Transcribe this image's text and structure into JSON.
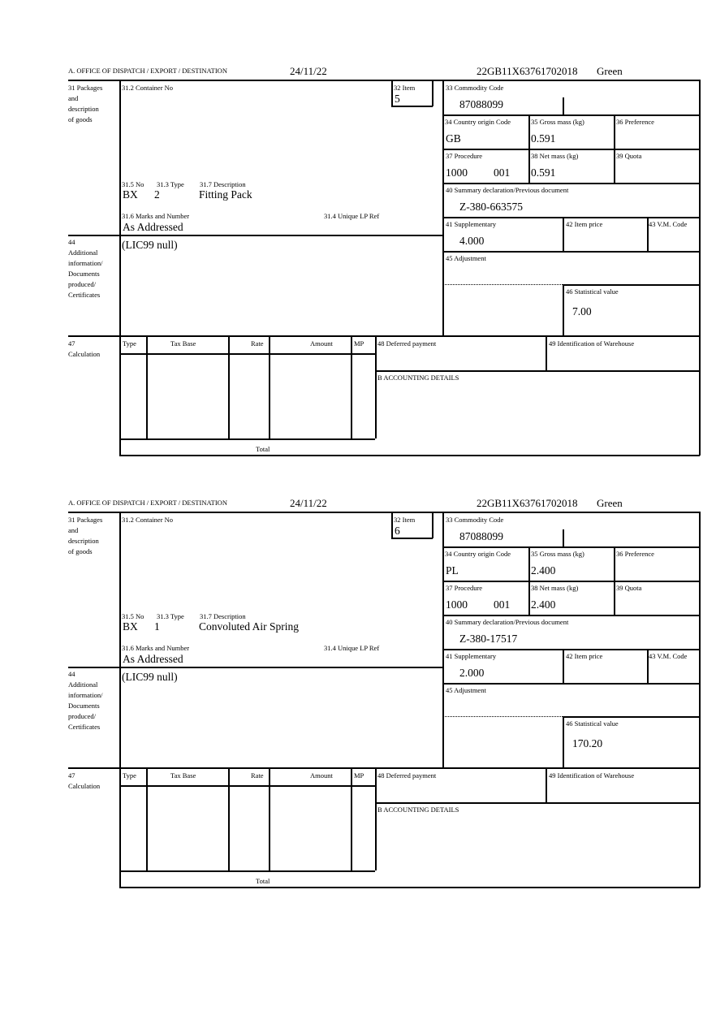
{
  "labels": {
    "office": "A. OFFICE OF DISPATCH / EXPORT / DESTINATION",
    "packages": [
      "31 Packages",
      "and",
      "description",
      "of goods"
    ],
    "container": "31.2 Container No",
    "item": "32 Item",
    "commodity": "33 Commodity Code",
    "country": "34 Country origin Code",
    "gross": "35 Gross mass (kg)",
    "preference": "36 Preference",
    "procedure": "37 Procedure",
    "net": "38 Net mass (kg)",
    "quota": "39 Quota",
    "summary": "40 Summary declaration/Previous document",
    "supplementary": "41 Supplementary",
    "item_price": "42 Item price",
    "vm_code": "43 V.M. Code",
    "adjustment": "45 Adjustment",
    "statistical": "46 Statistical value",
    "no": "31.5 No",
    "type": "31.3 Type",
    "description": "31.7 Description",
    "marks": "31.6 Marks and Number",
    "unique_ref": "31.4 Unique LP Ref",
    "additional": [
      "44",
      "Additional",
      "information/",
      "Documents",
      "produced/",
      "Certificates"
    ],
    "calculation": [
      "47",
      "Calculation"
    ],
    "calc_cols": [
      "Type",
      "Tax Base",
      "Rate",
      "Amount",
      "MP"
    ],
    "deferred": "48 Deferred payment",
    "warehouse": "49 Identification of Warehouse",
    "accounting": "B ACCOUNTING DETAILS",
    "total": "Total"
  },
  "forms": [
    {
      "date": "24/11/22",
      "reference": "22GB11X63761702018",
      "route": "Green",
      "item": "5",
      "commodity_code": "87088099",
      "country": "GB",
      "gross_mass": "0.591",
      "procedure": "1000",
      "procedure_ext": "001",
      "net_mass": "0.591",
      "summary_doc": "Z-380-663575",
      "supplementary": "4.000",
      "statistical_value": "7.00",
      "package_kind": "BX",
      "package_count": "2",
      "description": "Fitting Pack",
      "marks": "As Addressed",
      "additional_info": "(LIC99 null)"
    },
    {
      "date": "24/11/22",
      "reference": "22GB11X63761702018",
      "route": "Green",
      "item": "6",
      "commodity_code": "87088099",
      "country": "PL",
      "gross_mass": "2.400",
      "procedure": "1000",
      "procedure_ext": "001",
      "net_mass": "2.400",
      "summary_doc": "Z-380-17517",
      "supplementary": "2.000",
      "statistical_value": "170.20",
      "package_kind": "BX",
      "package_count": "1",
      "description": "Convoluted Air Spring",
      "marks": "As Addressed",
      "additional_info": "(LIC99 null)"
    }
  ]
}
